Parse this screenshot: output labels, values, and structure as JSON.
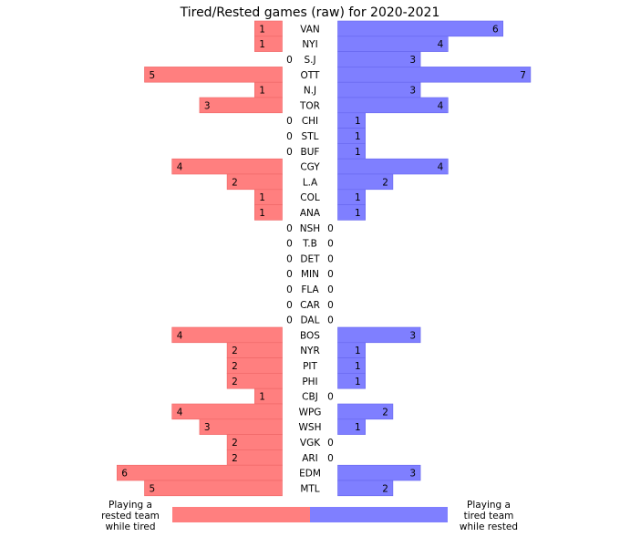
{
  "chart_data": {
    "type": "bar",
    "title": "Tired/Rested games (raw) for 2020-2021",
    "categories": [
      "VAN",
      "NYI",
      "S.J",
      "OTT",
      "N.J",
      "TOR",
      "CHI",
      "STL",
      "BUF",
      "CGY",
      "L.A",
      "COL",
      "ANA",
      "NSH",
      "T.B",
      "DET",
      "MIN",
      "FLA",
      "CAR",
      "DAL",
      "BOS",
      "NYR",
      "PIT",
      "PHI",
      "CBJ",
      "WPG",
      "WSH",
      "VGK",
      "ARI",
      "EDM",
      "MTL"
    ],
    "series": [
      {
        "name": "Playing a rested team while tired",
        "side": "left",
        "color": "#ff7f7f",
        "values": [
          1,
          1,
          0,
          5,
          1,
          3,
          0,
          0,
          0,
          4,
          2,
          1,
          1,
          0,
          0,
          0,
          0,
          0,
          0,
          0,
          4,
          2,
          2,
          2,
          1,
          4,
          3,
          2,
          2,
          6,
          5
        ]
      },
      {
        "name": "Playing a tired team while rested",
        "side": "right",
        "color": "#7f7fff",
        "values": [
          6,
          4,
          3,
          7,
          3,
          4,
          1,
          1,
          1,
          4,
          2,
          1,
          1,
          0,
          0,
          0,
          0,
          0,
          0,
          0,
          3,
          1,
          1,
          1,
          0,
          2,
          1,
          0,
          0,
          3,
          2
        ]
      }
    ],
    "legend": {
      "left_label": "Playing a\nrested team\nwhile tired",
      "right_label": "Playing a\ntired team\nwhile rested"
    }
  }
}
